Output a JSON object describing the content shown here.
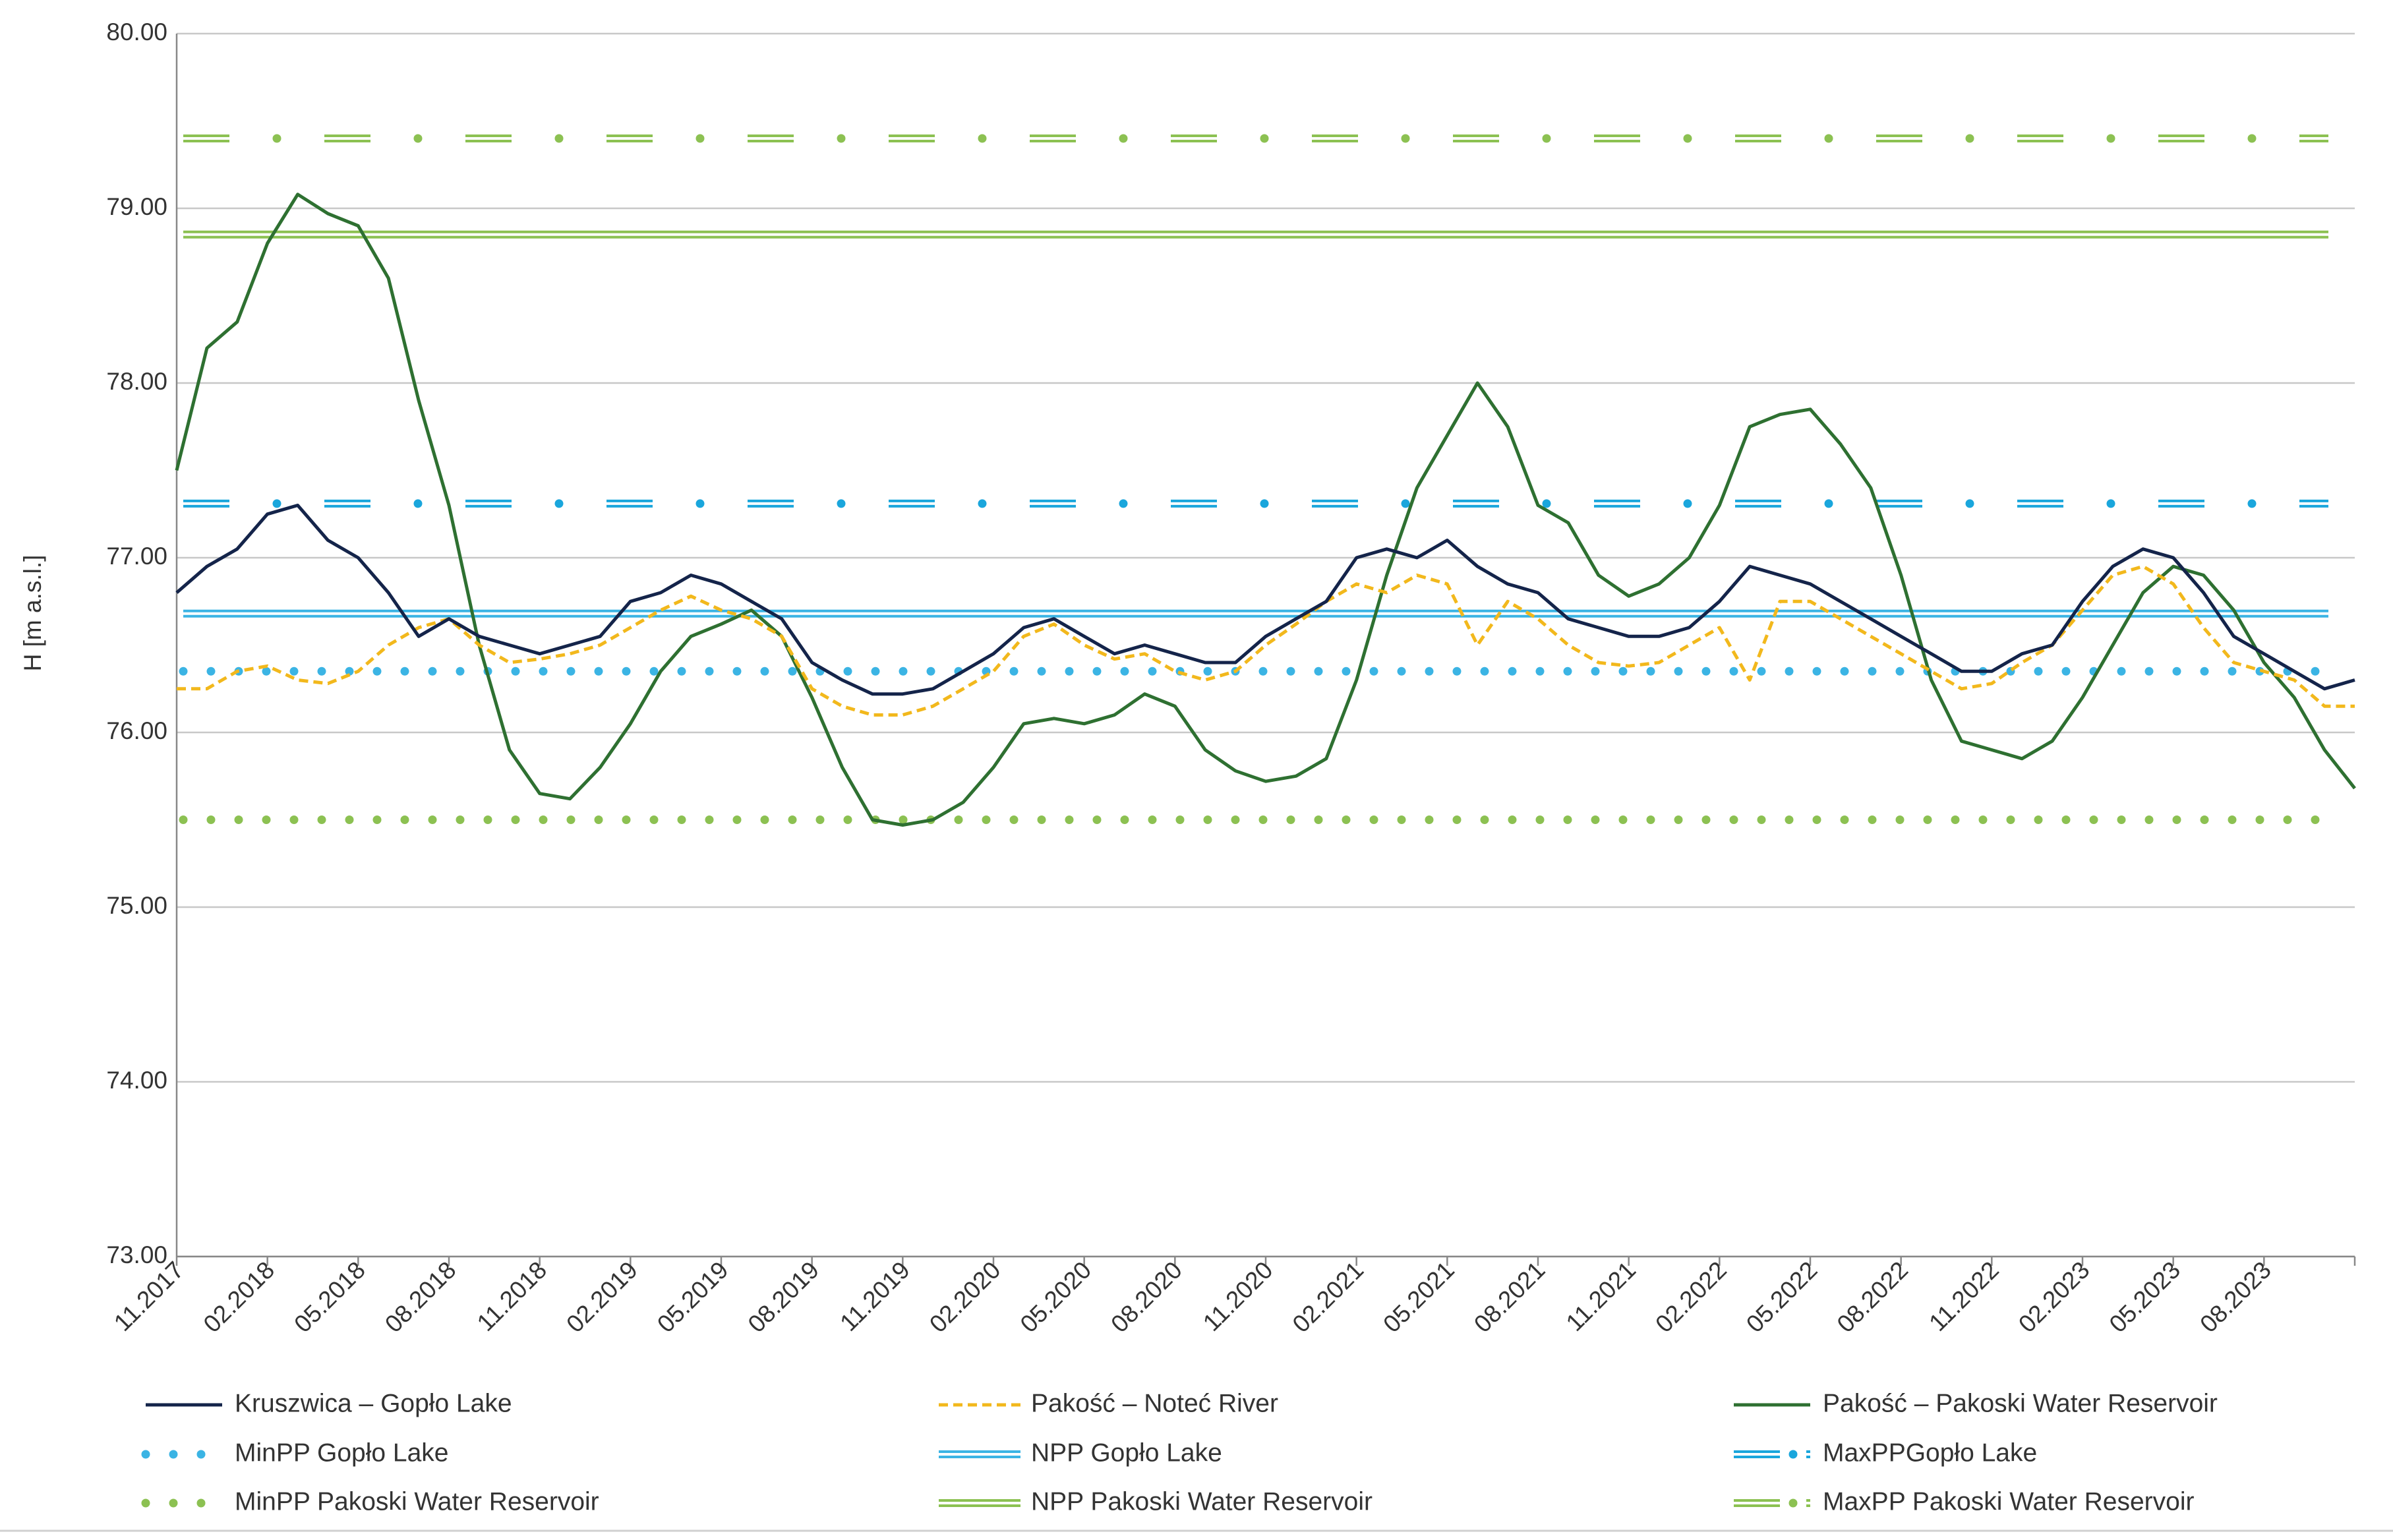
{
  "chart_data": {
    "type": "line",
    "y_label": "H [m a.s.l.]",
    "categories": [
      "11.2017",
      null,
      null,
      "02.2018",
      null,
      null,
      "05.2018",
      null,
      null,
      "08.2018",
      null,
      null,
      "11.2018",
      null,
      null,
      "02.2019",
      null,
      null,
      "05.2019",
      null,
      null,
      "08.2019",
      null,
      null,
      "11.2019",
      null,
      null,
      "02.2020",
      null,
      null,
      "05.2020",
      null,
      null,
      "08.2020",
      null,
      null,
      "11.2020",
      null,
      null,
      "02.2021",
      null,
      null,
      "05.2021",
      null,
      null,
      "08.2021",
      null,
      null,
      "11.2021",
      null,
      null,
      "02.2022",
      null,
      null,
      "05.2022",
      null,
      null,
      "08.2022",
      null,
      null,
      "11.2022",
      null,
      null,
      "02.2023",
      null,
      null,
      "05.2023",
      null,
      null,
      "08.2023",
      null,
      null,
      null
    ],
    "ylim": [
      73,
      80
    ],
    "yticks": [
      {
        "value": 73,
        "label": "73.00"
      },
      {
        "value": 74,
        "label": "74.00"
      },
      {
        "value": 75,
        "label": "75.00"
      },
      {
        "value": 76,
        "label": "76.00"
      },
      {
        "value": 77,
        "label": "77.00"
      },
      {
        "value": 78,
        "label": "78.00"
      },
      {
        "value": 79,
        "label": "79.00"
      },
      {
        "value": 80,
        "label": "80.00"
      }
    ],
    "grid": true,
    "series": [
      {
        "name": "Kruszwica – Gopło Lake",
        "color": "#14244a",
        "style": "solid",
        "values": [
          76.8,
          76.95,
          77.05,
          77.25,
          77.3,
          77.1,
          77.0,
          76.8,
          76.55,
          76.65,
          76.55,
          76.5,
          76.45,
          76.5,
          76.55,
          76.75,
          76.8,
          76.9,
          76.85,
          76.75,
          76.65,
          76.4,
          76.3,
          76.22,
          76.22,
          76.25,
          76.35,
          76.45,
          76.6,
          76.65,
          76.55,
          76.45,
          76.5,
          76.45,
          76.4,
          76.4,
          76.55,
          76.65,
          76.75,
          77.0,
          77.05,
          77.0,
          77.1,
          76.95,
          76.85,
          76.8,
          76.65,
          76.6,
          76.55,
          76.55,
          76.6,
          76.75,
          76.95,
          76.9,
          76.85,
          76.75,
          76.65,
          76.55,
          76.45,
          76.35,
          76.35,
          76.45,
          76.5,
          76.75,
          76.95,
          77.05,
          77.0,
          76.8,
          76.55,
          76.45,
          76.35,
          76.25,
          76.3
        ]
      },
      {
        "name": "Pakość – Noteć River",
        "color": "#f2b81c",
        "style": "dashed",
        "values": [
          76.25,
          76.25,
          76.35,
          76.38,
          76.3,
          76.28,
          76.35,
          76.5,
          76.6,
          76.65,
          76.5,
          76.4,
          76.42,
          76.45,
          76.5,
          76.6,
          76.7,
          76.78,
          76.7,
          76.65,
          76.55,
          76.25,
          76.15,
          76.1,
          76.1,
          76.15,
          76.25,
          76.35,
          76.55,
          76.62,
          76.5,
          76.42,
          76.45,
          76.35,
          76.3,
          76.35,
          76.5,
          76.62,
          76.75,
          76.85,
          76.8,
          76.9,
          76.85,
          76.5,
          76.75,
          76.65,
          76.5,
          76.4,
          76.38,
          76.4,
          76.5,
          76.6,
          76.3,
          76.75,
          76.75,
          76.65,
          76.55,
          76.45,
          76.35,
          76.25,
          76.28,
          76.4,
          76.5,
          76.7,
          76.9,
          76.95,
          76.85,
          76.6,
          76.4,
          76.35,
          76.3,
          76.15,
          76.15
        ]
      },
      {
        "name": "Pakość – Pakoski Water Reservoir",
        "color": "#2e7031",
        "style": "solid",
        "values": [
          77.5,
          78.2,
          78.35,
          78.8,
          79.08,
          78.97,
          78.9,
          78.6,
          77.9,
          77.3,
          76.5,
          75.9,
          75.65,
          75.62,
          75.8,
          76.05,
          76.35,
          76.55,
          76.62,
          76.7,
          76.55,
          76.2,
          75.8,
          75.5,
          75.47,
          75.5,
          75.6,
          75.8,
          76.05,
          76.08,
          76.05,
          76.1,
          76.22,
          76.15,
          75.9,
          75.78,
          75.72,
          75.75,
          75.85,
          76.3,
          76.9,
          77.4,
          77.7,
          78.0,
          77.75,
          77.3,
          77.2,
          76.9,
          76.78,
          76.85,
          77.0,
          77.3,
          77.75,
          77.82,
          77.85,
          77.65,
          77.4,
          76.9,
          76.3,
          75.95,
          75.9,
          75.85,
          75.95,
          76.2,
          76.5,
          76.8,
          76.95,
          76.9,
          76.7,
          76.4,
          76.2,
          75.9,
          75.68
        ]
      }
    ],
    "reference_lines": [
      {
        "name": "MinPP Gopło Lake",
        "color": "#3bb4e4",
        "style": "dotted",
        "value": 76.35
      },
      {
        "name": "NPP Gopło Lake",
        "color": "#3bb4e4",
        "style": "double",
        "value": 76.68
      },
      {
        "name": "MaxPPGopło Lake",
        "color": "#1aa6dc",
        "style": "double-dash-dot",
        "value": 77.31
      },
      {
        "name": "MinPP Pakoski Water Reservoir",
        "color": "#8cc152",
        "style": "dotted",
        "value": 75.5
      },
      {
        "name": "NPP Pakoski Water Reservoir",
        "color": "#8cc152",
        "style": "double",
        "value": 78.85
      },
      {
        "name": "MaxPP Pakoski Water Reservoir",
        "color": "#8cc152",
        "style": "double-dash-dot",
        "value": 79.4
      }
    ]
  }
}
